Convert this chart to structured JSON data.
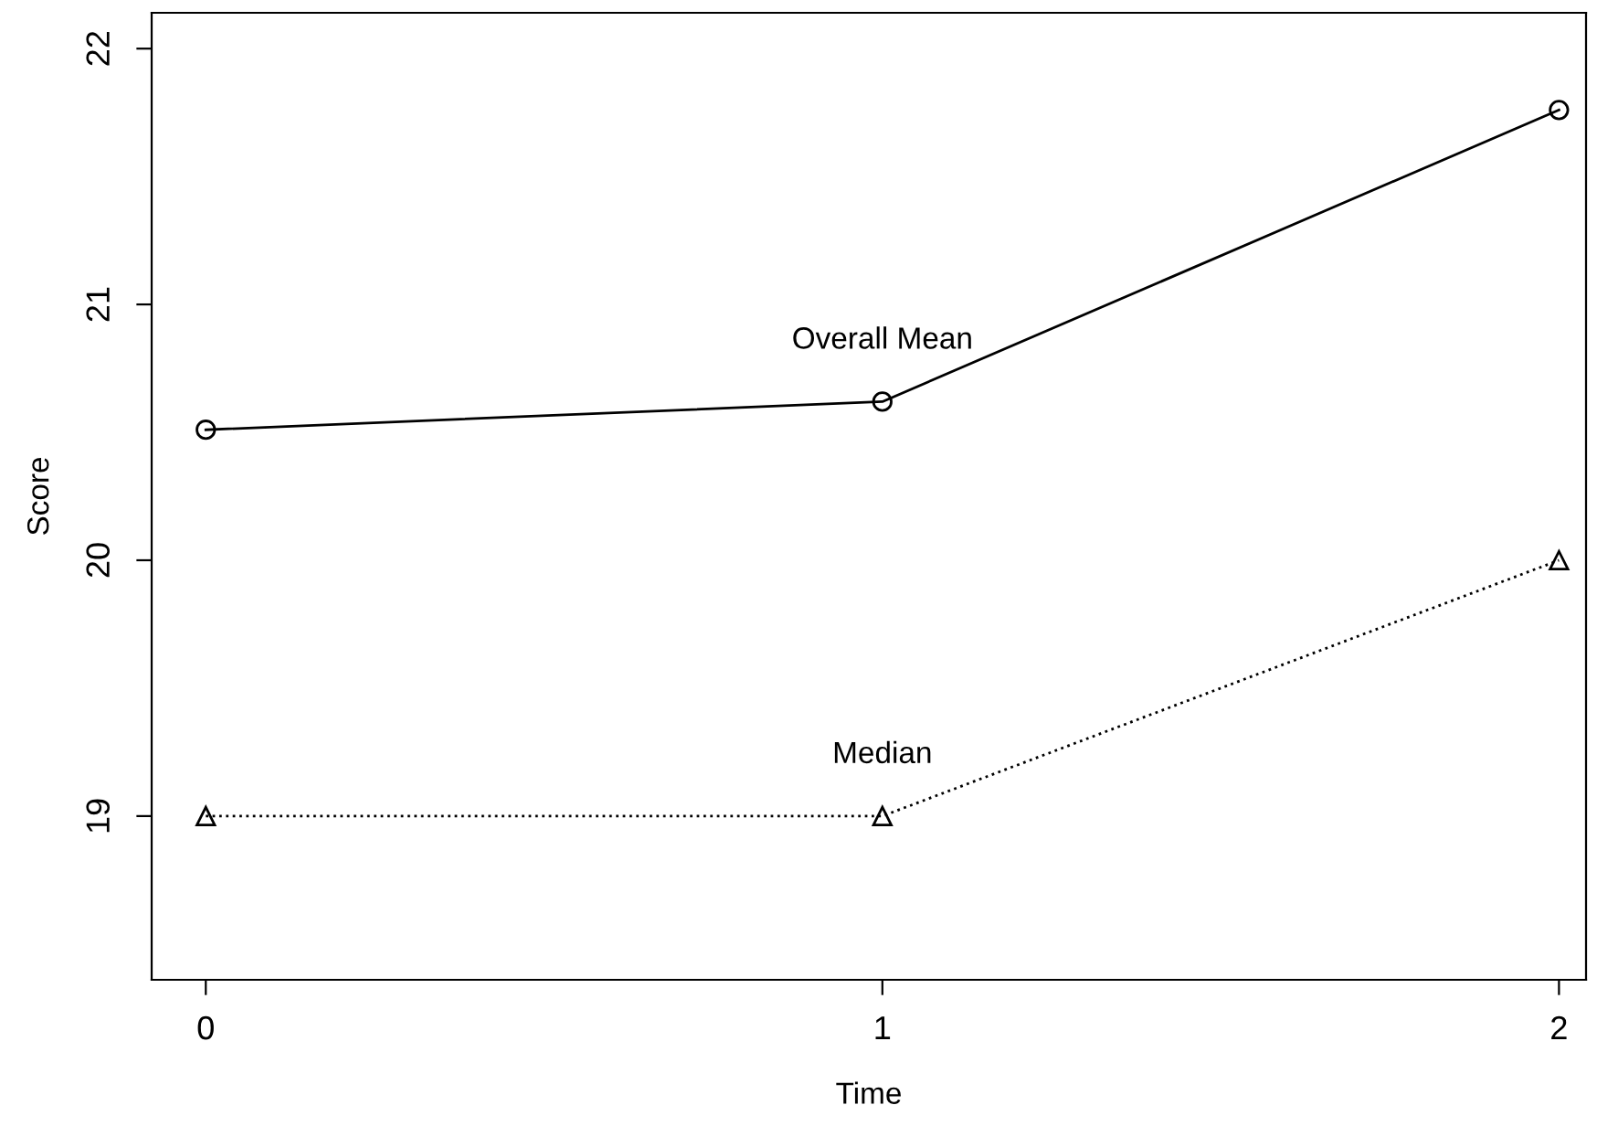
{
  "chart_data": {
    "type": "line",
    "xlabel": "Time",
    "ylabel": "Score",
    "x": [
      0,
      1,
      2
    ],
    "series": [
      {
        "name": "Overall Mean",
        "color": "#000000",
        "values": [
          20.51,
          20.62,
          21.76
        ],
        "marker": "circle",
        "line_style": "solid"
      },
      {
        "name": "Median",
        "color": "#000000",
        "values": [
          19.0,
          19.0,
          20.0
        ],
        "marker": "triangle",
        "line_style": "dotted"
      }
    ],
    "xlim": [
      -0.08,
      2.04
    ],
    "ylim": [
      18.36,
      22.14
    ],
    "xticks": [
      0,
      1,
      2
    ],
    "yticks": [
      19,
      20,
      21,
      22
    ],
    "grid": false,
    "legend": false
  }
}
